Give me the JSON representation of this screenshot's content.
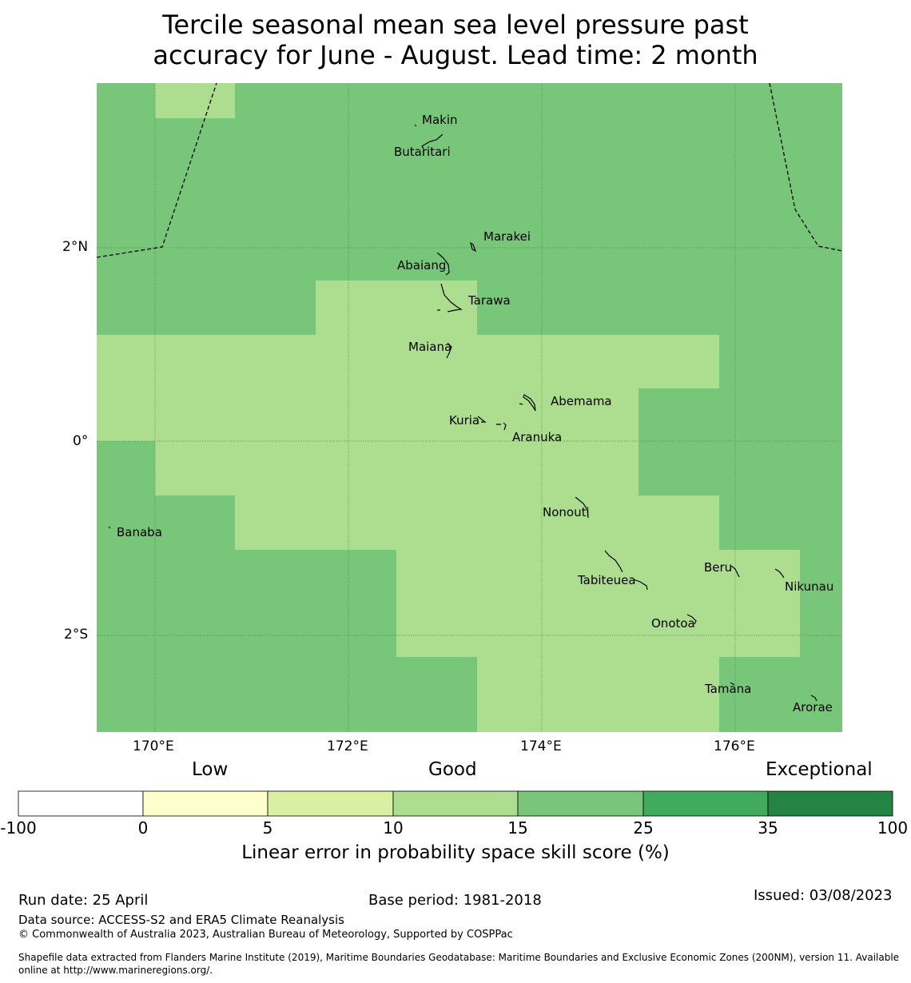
{
  "title_line1": "Tercile seasonal mean sea level pressure past",
  "title_line2": "accuracy for June - August. Lead time: 2 month",
  "map": {
    "lon_ticks": [
      "170°E",
      "172°E",
      "174°E",
      "176°E"
    ],
    "lat_ticks": [
      "2°N",
      "0°",
      "2°S"
    ],
    "islands": [
      "Makin",
      "Butaritari",
      "Marakei",
      "Abaiang",
      "Tarawa",
      "Maiana",
      "Abemama",
      "Kuria",
      "Aranuka",
      "Banaba",
      "Nonouti",
      "Beru",
      "Tabiteuea",
      "Nikunau",
      "Onotoa",
      "Tamana",
      "Arorae"
    ]
  },
  "colorbar": {
    "category_labels": [
      "Low",
      "Good",
      "Exceptional"
    ],
    "bounds": [
      "-100",
      "0",
      "5",
      "10",
      "15",
      "25",
      "35",
      "100"
    ],
    "colors": [
      "#ffffff",
      "#ffffcc",
      "#d9f0a3",
      "#addd8e",
      "#78c679",
      "#41ab5d",
      "#238443"
    ],
    "label": "Linear error in probability space skill score (%)"
  },
  "footer": {
    "run_date": "Run date: 25 April",
    "base_period": "Base period: 1981-2018",
    "issued": "Issued: 03/08/2023",
    "data_source": "Data source: ACCESS-S2 and ERA5 Climate Reanalysis",
    "copyright": "© Commonwealth of Australia 2023, Australian Bureau of Meteorology, Supported by COSPPac",
    "shapefile_line1": "Shapefile data extracted from Flanders Marine Institute (2019), Maritime Boundaries Geodatabase: Maritime Boundaries and Exclusive Economic Zones (200NM), version 11. Available",
    "shapefile_line2": "online at http://www.marineregions.org/."
  }
}
